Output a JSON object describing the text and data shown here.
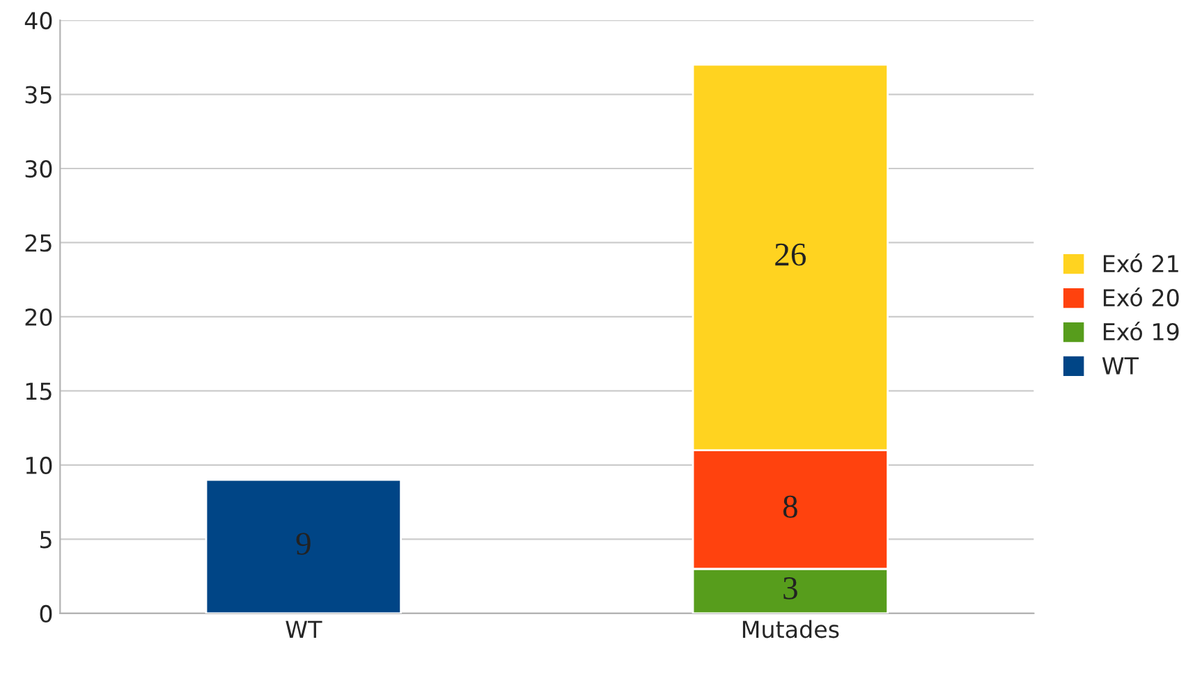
{
  "chart_data": {
    "type": "bar",
    "stacked": true,
    "categories": [
      "WT",
      "Mutades"
    ],
    "series": [
      {
        "name": "WT",
        "color": "#004586",
        "values": [
          9,
          null
        ]
      },
      {
        "name": "Exó 19",
        "color": "#579d1c",
        "values": [
          null,
          3
        ]
      },
      {
        "name": "Exó 20",
        "color": "#ff420e",
        "values": [
          null,
          8
        ]
      },
      {
        "name": "Exó 21",
        "color": "#ffd320",
        "values": [
          null,
          26
        ]
      }
    ],
    "ylim": [
      0,
      40
    ],
    "yticks": [
      0,
      5,
      10,
      15,
      20,
      25,
      30,
      35,
      40
    ],
    "grid": "y",
    "legend": "right",
    "data_labels": true
  }
}
